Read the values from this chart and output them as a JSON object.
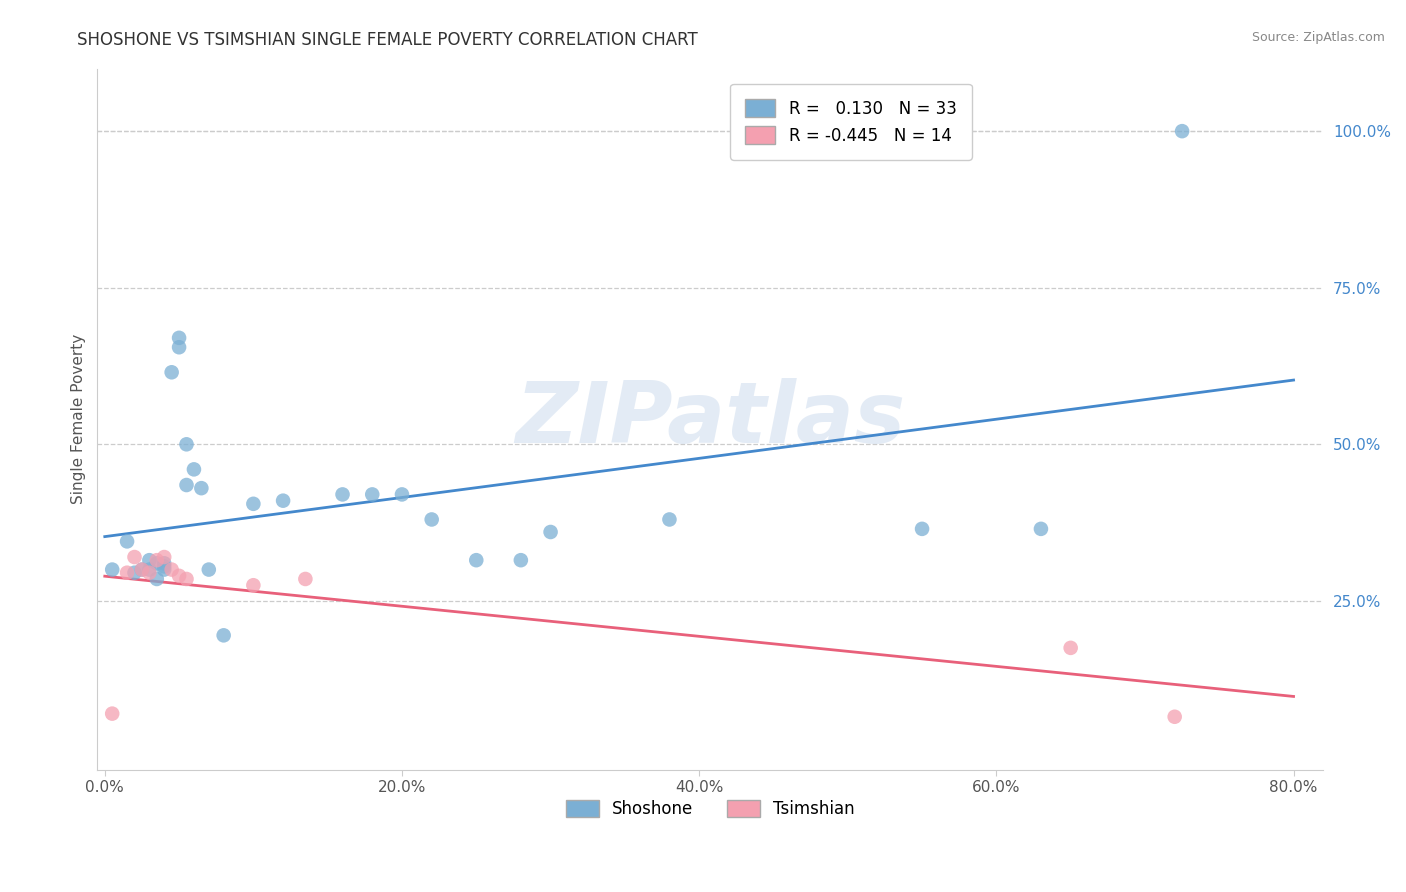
{
  "title": "SHOSHONE VS TSIMSHIAN SINGLE FEMALE POVERTY CORRELATION CHART",
  "source_text": "Source: ZipAtlas.com",
  "ylabel": "Single Female Poverty",
  "xlim": [
    -0.005,
    0.82
  ],
  "ylim": [
    -0.02,
    1.1
  ],
  "xtick_labels": [
    "0.0%",
    "20.0%",
    "40.0%",
    "60.0%",
    "80.0%"
  ],
  "xtick_values": [
    0.0,
    0.2,
    0.4,
    0.6,
    0.8
  ],
  "ytick_labels": [
    "25.0%",
    "50.0%",
    "75.0%",
    "100.0%"
  ],
  "ytick_values": [
    0.25,
    0.5,
    0.75,
    1.0
  ],
  "shoshone_color": "#7BAFD4",
  "tsimshian_color": "#F4A0B0",
  "shoshone_line_color": "#4488CC",
  "tsimshian_line_color": "#E8607A",
  "ytick_color": "#4488CC",
  "shoshone_R": 0.13,
  "shoshone_N": 33,
  "tsimshian_R": -0.445,
  "tsimshian_N": 14,
  "watermark": "ZIPatlas",
  "background_color": "#ffffff",
  "grid_color": "#cccccc",
  "shoshone_x": [
    0.005,
    0.015,
    0.02,
    0.025,
    0.03,
    0.03,
    0.035,
    0.035,
    0.04,
    0.04,
    0.04,
    0.045,
    0.05,
    0.05,
    0.055,
    0.055,
    0.06,
    0.065,
    0.07,
    0.08,
    0.1,
    0.12,
    0.16,
    0.18,
    0.2,
    0.22,
    0.25,
    0.28,
    0.3,
    0.38,
    0.55,
    0.63,
    0.725
  ],
  "shoshone_y": [
    0.3,
    0.345,
    0.295,
    0.3,
    0.315,
    0.3,
    0.31,
    0.285,
    0.305,
    0.31,
    0.3,
    0.615,
    0.655,
    0.67,
    0.435,
    0.5,
    0.46,
    0.43,
    0.3,
    0.195,
    0.405,
    0.41,
    0.42,
    0.42,
    0.42,
    0.38,
    0.315,
    0.315,
    0.36,
    0.38,
    0.365,
    0.365,
    1.0
  ],
  "tsimshian_x": [
    0.005,
    0.015,
    0.02,
    0.025,
    0.03,
    0.035,
    0.04,
    0.045,
    0.05,
    0.055,
    0.1,
    0.135,
    0.65,
    0.72
  ],
  "tsimshian_y": [
    0.07,
    0.295,
    0.32,
    0.3,
    0.295,
    0.315,
    0.32,
    0.3,
    0.29,
    0.285,
    0.275,
    0.285,
    0.175,
    0.065
  ]
}
